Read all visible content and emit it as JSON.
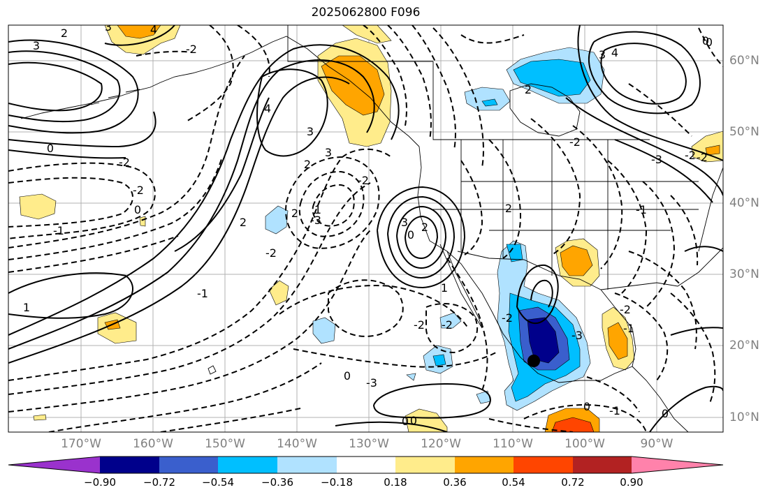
{
  "title": "2025062800 F096",
  "map": {
    "lon_ticks": [
      "170°W",
      "160°W",
      "150°W",
      "140°W",
      "130°W",
      "120°W",
      "110°W",
      "100°W",
      "90°W"
    ],
    "lat_ticks": [
      "60°N",
      "50°N",
      "40°N",
      "30°N",
      "20°N",
      "10°N"
    ],
    "contour_labels": [
      "3",
      "2",
      "3",
      "4",
      "0",
      "-2",
      "-2",
      "-1",
      "0",
      "1",
      "2",
      "3",
      "2",
      "-2",
      "-1",
      "-2",
      "4",
      "3",
      "2",
      "1",
      "-3",
      "-2",
      "3",
      "2",
      "-2",
      "-2",
      "0",
      "-3",
      "0",
      "0",
      "2",
      "-2",
      "-1",
      "-3",
      "0",
      "2",
      "3",
      "4",
      "0",
      "-2",
      "-2",
      "0",
      "1",
      "-2",
      "-3",
      "-2",
      "-1",
      "0",
      "-1",
      "0"
    ],
    "colors": {
      "line": "#000000",
      "grid": "#b0b0b0",
      "border": "#000000"
    }
  },
  "colorbar": {
    "ticks": [
      "−0.90",
      "−0.72",
      "−0.54",
      "−0.36",
      "−0.18",
      "0.18",
      "0.36",
      "0.54",
      "0.72",
      "0.90"
    ],
    "colors": [
      "#9a32cd",
      "#00008b",
      "#3a5fcd",
      "#00bfff",
      "#b0e2ff",
      "#ffffff",
      "#ffec8b",
      "#ffa500",
      "#ff4500",
      "#b22222",
      "#ff82ab"
    ]
  }
}
